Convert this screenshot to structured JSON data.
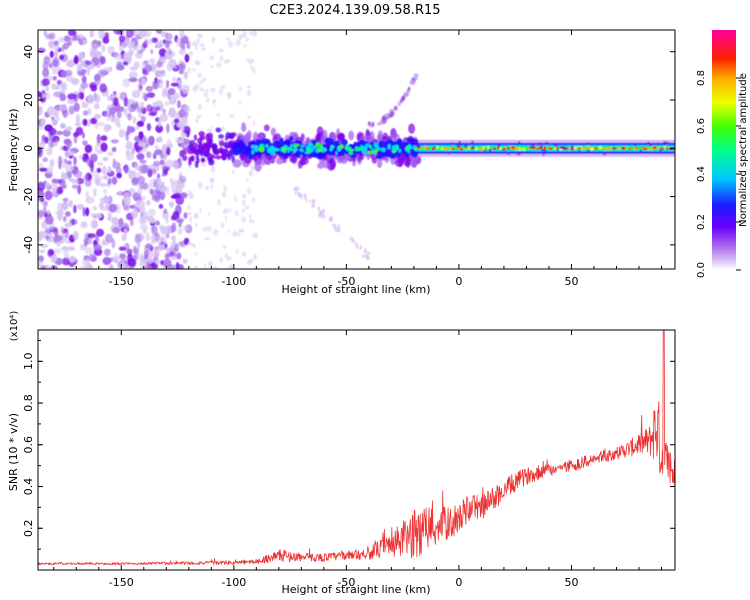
{
  "title": "C2E3.2024.139.09.58.R15",
  "chart_data": [
    {
      "type": "heatmap",
      "title": "C2E3.2024.139.09.58.R15",
      "xlabel": "Height of straight line (km)",
      "ylabel": "Frequency (Hz)",
      "xlim": [
        -187,
        96
      ],
      "ylim": [
        -50,
        49
      ],
      "xticks": [
        -150,
        -100,
        -50,
        0,
        50
      ],
      "xtick_labels": [
        "-150",
        "-100",
        "-50",
        "0",
        "50"
      ],
      "yticks": [
        -40,
        -20,
        0,
        20,
        40
      ],
      "ytick_labels": [
        "-40",
        "-20",
        "0",
        "20",
        "40"
      ],
      "colorbar": {
        "label": "Normalized spectral amplitude",
        "range": [
          0,
          1
        ],
        "ticks": [
          0.0,
          0.2,
          0.4,
          0.6,
          0.8
        ],
        "tick_labels": [
          "0.0",
          "0.2",
          "0.4",
          "0.6",
          "0.8"
        ],
        "colors": [
          "#ffffff",
          "#c9a3f0",
          "#8a00e6",
          "#2400ff",
          "#00d8ff",
          "#00ff44",
          "#f4ff00",
          "#ff8a00",
          "#ff0000",
          "#ff00aa"
        ]
      },
      "features": [
        {
          "name": "scattered noise",
          "x_range": [
            -187,
            -120
          ],
          "freq_range": [
            -50,
            49
          ],
          "amplitude": 0.05
        },
        {
          "name": "noise-to-band transition",
          "x_range": [
            -120,
            -100
          ],
          "freq_range": [
            -15,
            10
          ],
          "amplitude": 0.15
        },
        {
          "name": "broad band",
          "x_range": [
            -100,
            -18
          ],
          "center_freq": 0,
          "half_width": 8,
          "amplitude": 0.3
        },
        {
          "name": "narrow carrier line",
          "x_range": [
            -18,
            96
          ],
          "center_freq": 0,
          "half_width": 3,
          "amplitude": 0.8
        },
        {
          "name": "rising doppler branch",
          "x_range": [
            -40,
            -18
          ],
          "freq_range": [
            10,
            32
          ],
          "amplitude": 0.12
        },
        {
          "name": "falling doppler branch",
          "x_range": [
            -75,
            -40
          ],
          "freq_range": [
            -15,
            -45
          ],
          "amplitude": 0.1
        }
      ]
    },
    {
      "type": "line",
      "title": "",
      "xlabel": "Height of straight line (km)",
      "ylabel": "SNR (10 * v/v)",
      "y_multiplier_label": "(x10⁴)",
      "xlim": [
        -187,
        96
      ],
      "ylim": [
        0,
        1.15
      ],
      "xticks": [
        -150,
        -100,
        -50,
        0,
        50
      ],
      "xtick_labels": [
        "-150",
        "-100",
        "-50",
        "0",
        "50"
      ],
      "yticks": [
        0.2,
        0.4,
        0.6,
        0.8,
        1.0
      ],
      "ytick_labels": [
        "0.2",
        "0.4",
        "0.6",
        "0.8",
        "1.0"
      ],
      "color": "#ee3333",
      "x": [
        -187,
        -150,
        -100,
        -90,
        -80,
        -70,
        -60,
        -50,
        -40,
        -30,
        -20,
        -15,
        -10,
        -5,
        0,
        5,
        10,
        15,
        20,
        25,
        30,
        40,
        50,
        60,
        70,
        80,
        85,
        88,
        90,
        93,
        96
      ],
      "y": [
        0.03,
        0.03,
        0.035,
        0.04,
        0.07,
        0.06,
        0.06,
        0.07,
        0.08,
        0.12,
        0.17,
        0.2,
        0.21,
        0.22,
        0.25,
        0.3,
        0.3,
        0.34,
        0.38,
        0.42,
        0.45,
        0.48,
        0.5,
        0.53,
        0.56,
        0.6,
        0.62,
        0.7,
        0.55,
        0.5,
        0.45
      ],
      "noise": [
        0.005,
        0.005,
        0.01,
        0.01,
        0.03,
        0.02,
        0.02,
        0.02,
        0.03,
        0.06,
        0.12,
        0.12,
        0.1,
        0.08,
        0.07,
        0.07,
        0.06,
        0.06,
        0.05,
        0.05,
        0.04,
        0.03,
        0.03,
        0.03,
        0.03,
        0.05,
        0.08,
        0.2,
        0.15,
        0.1,
        0.1
      ],
      "spike": {
        "x": 91,
        "y": 1.15
      }
    }
  ]
}
